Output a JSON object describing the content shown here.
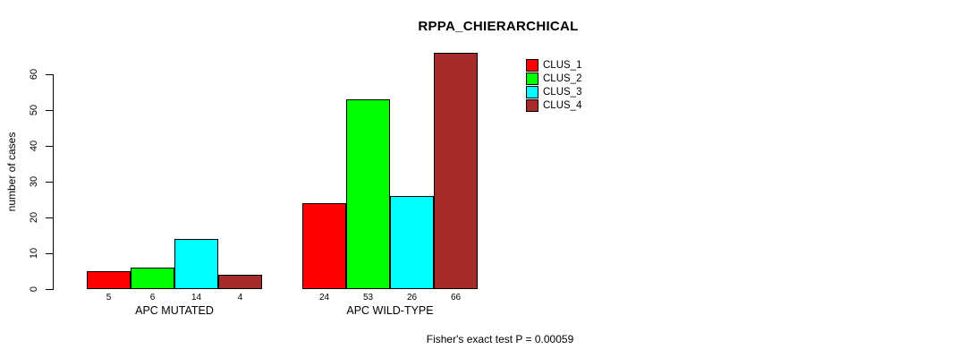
{
  "chart_data": {
    "type": "bar",
    "title": "RPPA_CHIERARCHICAL",
    "ylabel": "number of cases",
    "xlabel": "",
    "ylim": [
      0,
      60
    ],
    "yticks": [
      0,
      10,
      20,
      30,
      40,
      50,
      60
    ],
    "grid": false,
    "legend_position": "top-right",
    "categories": [
      "APC MUTATED",
      "APC WILD-TYPE"
    ],
    "series": [
      {
        "name": "CLUS_1",
        "color": "#FF0000",
        "values": [
          5,
          24
        ]
      },
      {
        "name": "CLUS_2",
        "color": "#00FF00",
        "values": [
          6,
          53
        ]
      },
      {
        "name": "CLUS_3",
        "color": "#00FFFF",
        "values": [
          14,
          26
        ]
      },
      {
        "name": "CLUS_4",
        "color": "#A52A2A",
        "values": [
          4,
          66
        ]
      }
    ],
    "bar_value_labels": [
      [
        5,
        6,
        14,
        4
      ],
      [
        24,
        53,
        26,
        66
      ]
    ],
    "annotation": "Fisher's exact test P = 0.00059",
    "colors": {
      "background": "#FFFFFF",
      "axis": "#000000",
      "text": "#000000",
      "bar_border": "#000000"
    }
  }
}
